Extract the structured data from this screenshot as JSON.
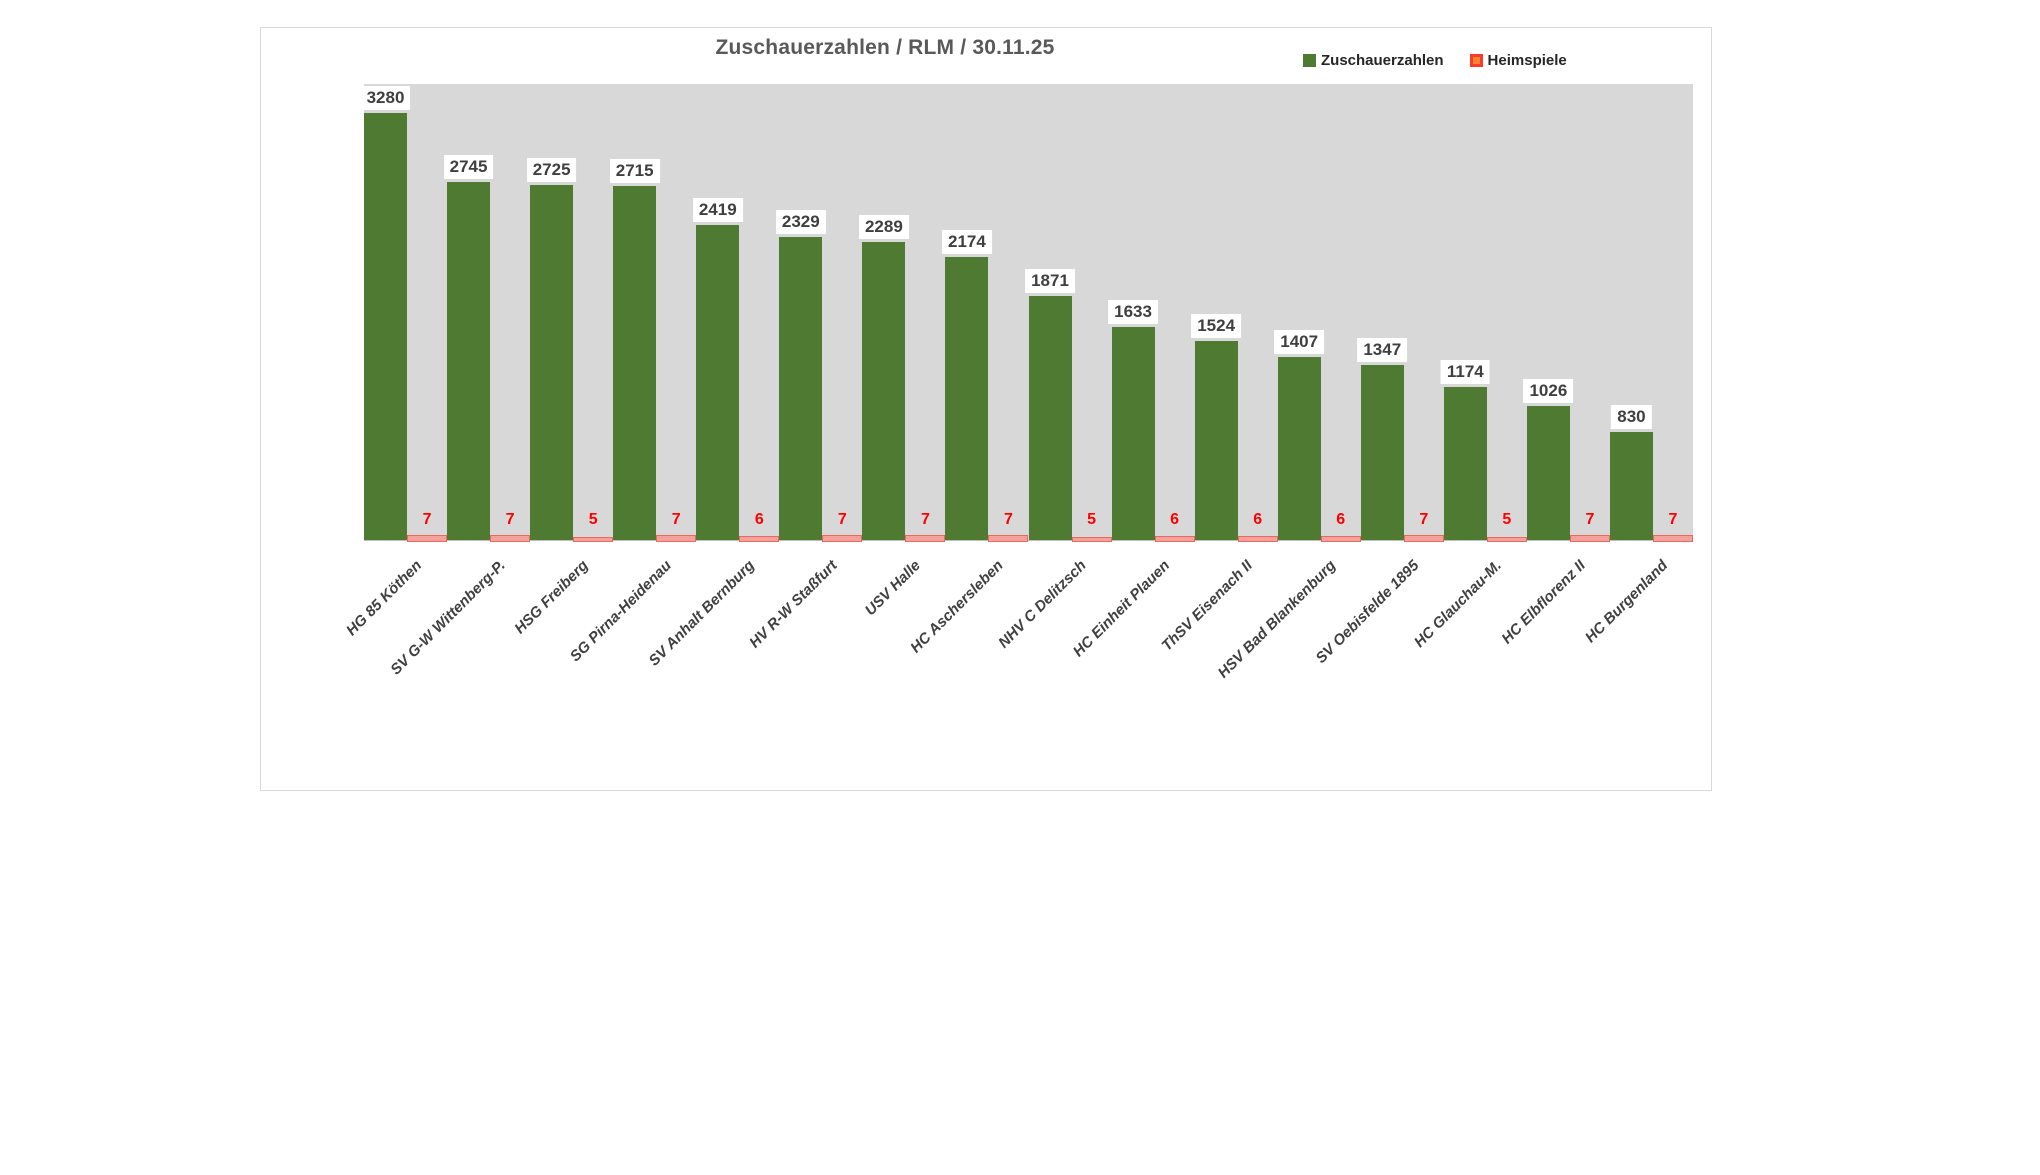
{
  "chart": {
    "title": "Zuschauerzahlen / RLM / 30.11.25",
    "colors": {
      "bar_green": "#4e7b31",
      "bar_red_fill": "#f4a19b",
      "bar_red_border": "#e8695f",
      "legend_red_border": "#fa3b29",
      "legend_red_fill": "#ff8132",
      "plot_background": "#d8d8d8",
      "title_text": "#595959",
      "value_label_text": "#3f3f3f",
      "count_label_text": "#ff0000",
      "category_text": "#404040",
      "frame_border": "#d9d9d9",
      "axis_line": "#bfbfbf"
    }
  },
  "chart_data": {
    "type": "bar",
    "title": "Zuschauerzahlen / RLM / 30.11.25",
    "categories": [
      "HG 85 Köthen",
      "SV G-W Wittenberg-P.",
      "HSG Freiberg",
      "SG Pirna-Heidenau",
      "SV Anhalt Bernburg",
      "HV R-W Staßfurt",
      "USV Halle",
      "HC Aschersleben",
      "NHV C Delitzsch",
      "HC Einheit Plauen",
      "ThSV Eisenach II",
      "HSV Bad Blankenburg",
      "SV Oebisfelde 1895",
      "HC Glauchau-M.",
      "HC Elbflorenz II",
      "HC Burgenland"
    ],
    "series": [
      {
        "name": "Zuschauerzahlen",
        "values": [
          3280,
          2745,
          2725,
          2715,
          2419,
          2329,
          2289,
          2174,
          1871,
          1633,
          1524,
          1407,
          1347,
          1174,
          1026,
          830
        ],
        "color": "#4e7b31",
        "axis": "primary",
        "ylim": [
          0,
          3500
        ],
        "data_labels": true
      },
      {
        "name": "Heimspiele",
        "values": [
          7,
          7,
          5,
          7,
          6,
          7,
          7,
          7,
          5,
          6,
          6,
          6,
          7,
          5,
          7,
          7
        ],
        "color": "#f4a19b",
        "border_color": "#e8695f",
        "axis": "secondary",
        "ylim": [
          0,
          700
        ],
        "data_labels": true
      }
    ],
    "xlabel": "",
    "ylabel": "",
    "grid": false,
    "legend_position": "top-right",
    "x_tick_rotation": 45
  }
}
